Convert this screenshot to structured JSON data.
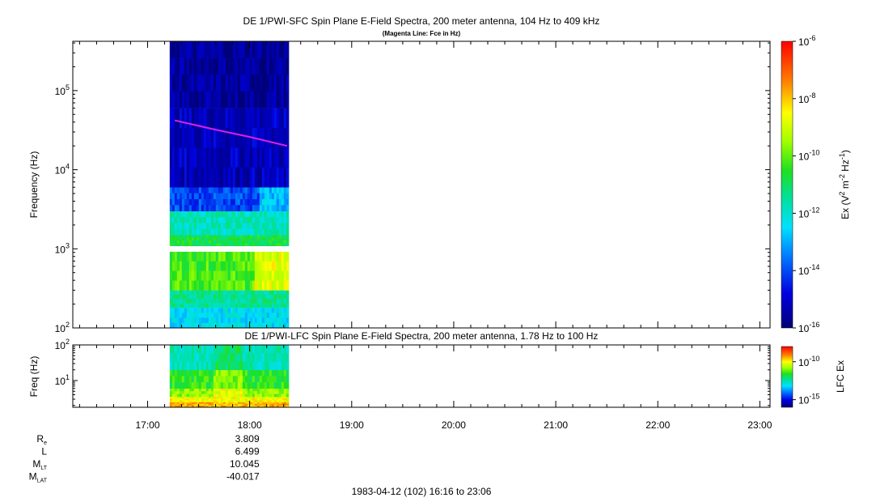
{
  "chart_data": [
    {
      "type": "heatmap",
      "title": "DE 1/PWI-SFC  Spin Plane E-Field Spectra, 200 meter antenna, 104 Hz to 409 kHz",
      "subtitle": "(Magenta Line: Fce in Hz)",
      "ylabel": "Frequency (Hz)",
      "yscale": "log",
      "ylim": [
        100,
        420000
      ],
      "y_ticks": [
        {
          "value": 100,
          "mant": "10",
          "exp": "2"
        },
        {
          "value": 1000,
          "mant": "10",
          "exp": "3"
        },
        {
          "value": 10000,
          "mant": "10",
          "exp": "4"
        },
        {
          "value": 100000,
          "mant": "10",
          "exp": "5"
        }
      ],
      "colorbar": {
        "label_parts": {
          "a": "Ex (V",
          "b": "2",
          "c": " m",
          "d": "-2",
          "e": " Hz",
          "f": "-1",
          "g": ")"
        },
        "scale": "log",
        "range": [
          1e-16,
          1e-06
        ],
        "ticks": [
          {
            "value": 1e-16,
            "mant": "10",
            "exp": "-16"
          },
          {
            "value": 1e-14,
            "mant": "10",
            "exp": "-14"
          },
          {
            "value": 1e-12,
            "mant": "10",
            "exp": "-12"
          },
          {
            "value": 1e-10,
            "mant": "10",
            "exp": "-10"
          },
          {
            "value": 1e-08,
            "mant": "10",
            "exp": "-8"
          },
          {
            "value": 1e-06,
            "mant": "10",
            "exp": "-6"
          }
        ]
      },
      "data_time_range": [
        "17:13",
        "18:23"
      ],
      "data_gap_hz": [
        920,
        1080
      ],
      "spectral_bands": [
        {
          "f_low": 100,
          "f_high": 180,
          "level": 0.36
        },
        {
          "f_low": 180,
          "f_high": 300,
          "level": 0.46
        },
        {
          "f_low": 300,
          "f_high": 920,
          "level": 0.58
        },
        {
          "f_low": 1080,
          "f_high": 1500,
          "level": 0.52
        },
        {
          "f_low": 1500,
          "f_high": 3000,
          "level": 0.42
        },
        {
          "f_low": 3000,
          "f_high": 6000,
          "level": 0.2
        },
        {
          "f_low": 6000,
          "f_high": 60000,
          "level": 0.08
        },
        {
          "f_low": 60000,
          "f_high": 420000,
          "level": 0.04
        }
      ],
      "fce_line": {
        "label": "Fce",
        "color": "#e020e0",
        "points": [
          {
            "t": "17:16",
            "f": 42000
          },
          {
            "t": "17:40",
            "f": 32000
          },
          {
            "t": "18:00",
            "f": 26000
          },
          {
            "t": "18:22",
            "f": 20000
          }
        ]
      }
    },
    {
      "type": "heatmap",
      "title": "DE 1/PWI-LFC  Spin Plane E-Field Spectra, 200 meter antenna, 1.78 Hz to 100 Hz",
      "ylabel": "Freq (Hz)",
      "yscale": "log",
      "ylim": [
        1.78,
        100
      ],
      "y_ticks": [
        {
          "value": 10,
          "mant": "10",
          "exp": "1"
        },
        {
          "value": 100,
          "mant": "10",
          "exp": "2"
        }
      ],
      "colorbar": {
        "label": "LFC Ex",
        "scale": "log",
        "range": [
          1e-16,
          1e-08
        ],
        "ticks": [
          {
            "value": 1e-15,
            "mant": "10",
            "exp": "-15"
          },
          {
            "value": 1e-10,
            "mant": "10",
            "exp": "-10"
          }
        ]
      },
      "data_time_range": [
        "17:13",
        "18:23"
      ],
      "spectral_bands": [
        {
          "f_low": 1.78,
          "f_high": 2.5,
          "level": 0.82
        },
        {
          "f_low": 2.5,
          "f_high": 3.5,
          "level": 0.74
        },
        {
          "f_low": 3.5,
          "f_high": 6,
          "level": 0.64
        },
        {
          "f_low": 6,
          "f_high": 20,
          "level": 0.55
        },
        {
          "f_low": 20,
          "f_high": 100,
          "level": 0.42
        }
      ]
    }
  ],
  "x_axis": {
    "range": [
      "16:16",
      "23:06"
    ],
    "major_ticks": [
      "17:00",
      "18:00",
      "19:00",
      "20:00",
      "21:00",
      "22:00",
      "23:00"
    ],
    "minor_step_minutes": 10
  },
  "ephemeris": [
    {
      "label": {
        "main": "R",
        "sub": "e"
      },
      "value": "3.809"
    },
    {
      "label": {
        "main": "L",
        "sub": ""
      },
      "value": "6.499"
    },
    {
      "label": {
        "main": "M",
        "sub": "LT"
      },
      "value": "10.045"
    },
    {
      "label": {
        "main": "M",
        "sub": "LAT"
      },
      "value": "-40.017"
    }
  ],
  "footer": "1983-04-12 (102) 16:16 to 23:06"
}
